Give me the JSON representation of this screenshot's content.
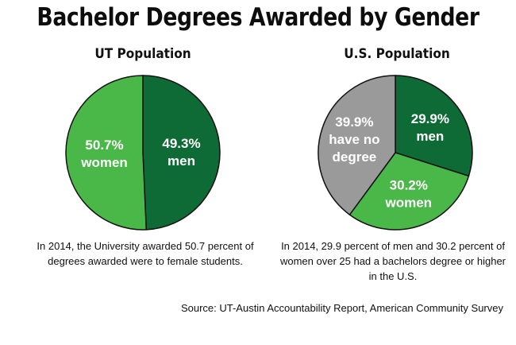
{
  "title": "Bachelor Degrees Awarded by Gender",
  "colors": {
    "men": "#0f6b36",
    "women": "#4ab848",
    "none": "#9a9a9a",
    "outline": "#111111"
  },
  "chart_data": [
    {
      "type": "pie",
      "title": "UT Population",
      "slices": [
        {
          "key": "men",
          "value": 49.3,
          "label_lines": [
            "49.3%",
            "men"
          ],
          "color": "#0f6b36"
        },
        {
          "key": "women",
          "value": 50.7,
          "label_lines": [
            "50.7%",
            "women"
          ],
          "color": "#4ab848"
        }
      ],
      "note": "In 2014, the University awarded 50.7 percent of degrees awarded were to female students."
    },
    {
      "type": "pie",
      "title": "U.S. Population",
      "slices": [
        {
          "key": "men",
          "value": 29.9,
          "label_lines": [
            "29.9%",
            "men"
          ],
          "color": "#0f6b36"
        },
        {
          "key": "women",
          "value": 30.2,
          "label_lines": [
            "30.2%",
            "women"
          ],
          "color": "#4ab848"
        },
        {
          "key": "none",
          "value": 39.9,
          "label_lines": [
            "39.9%",
            "have no",
            "degree"
          ],
          "color": "#9a9a9a"
        }
      ],
      "note": "In 2014, 29.9 percent of men and 30.2 percent of women over 25 had a bachelors degree or higher in the U.S."
    }
  ],
  "source": "Source: UT-Austin Accountability Report, American Community Survey"
}
